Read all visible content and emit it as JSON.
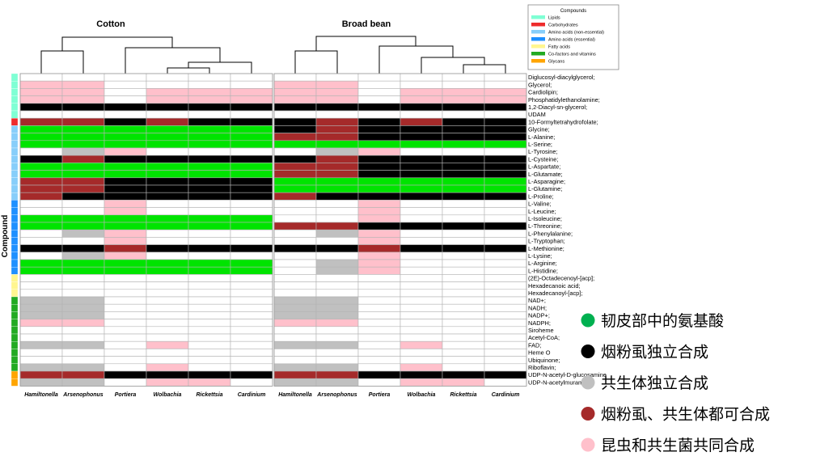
{
  "chart_data": {
    "type": "heatmap",
    "ylabel": "Compound",
    "panels": [
      {
        "title": "Cotton",
        "columns": [
          "Hamiltonella",
          "Arsenophonus",
          "Portiera",
          "Wolbachia",
          "Rickettsia",
          "Cardinium"
        ]
      },
      {
        "title": "Broad bean",
        "columns": [
          "Hamiltonella",
          "Arsenophonus",
          "Portiera",
          "Wolbachia",
          "Rickettsia",
          "Cardinium"
        ]
      }
    ],
    "rows": [
      "Diglucosyl-diacylglycerol;",
      "Glycerol;",
      "Cardiolipin;",
      "Phosphatidylethanolamine;",
      "1,2-Diacyl-sn-glycerol;",
      "UDAM",
      "10-Formyltetrahydrofolate;",
      "Glycine;",
      "L-Alanine;",
      "L-Serine;",
      "L-Tyrosine;",
      "L-Cysteine;",
      "L-Aspartate;",
      "L-Glutamate;",
      "L-Asparagine;",
      "L-Glutamine;",
      "L-Proline;",
      "L-Valine;",
      "L-Leucine;",
      "L-Isoleucine;",
      "L-Threonine;",
      "L-Phenylalanine;",
      "L-Tryptophan;",
      "L-Methionine;",
      "L-Lysine;",
      "L-Arginine;",
      "L-Histidine;",
      "(2E)-Octadecenoyl-[acp];",
      "Hexadecanoic acid;",
      "Hexadecanoyl-[acp];",
      "NAD+;",
      "NADH;",
      "NADP+;",
      "NADPH;",
      "Siroheme",
      "Acetyl-CoA;",
      "FAD;",
      "Heme O",
      "Ubiquinone;",
      "Riboflavin;",
      "UDP-N-acetyl-D-glucosamine",
      "UDP-N-acetylmuramate"
    ],
    "row_groups": [
      "L",
      "L",
      "L",
      "L",
      "L",
      "L",
      "C",
      "N",
      "N",
      "N",
      "N",
      "N",
      "N",
      "N",
      "N",
      "N",
      "N",
      "E",
      "E",
      "E",
      "E",
      "E",
      "E",
      "E",
      "E",
      "E",
      "E",
      "F",
      "F",
      "F",
      "V",
      "V",
      "V",
      "V",
      "V",
      "V",
      "V",
      "V",
      "V",
      "V",
      "G",
      "G"
    ],
    "value_key": {
      "0": "none",
      "1": "black",
      "2": "gray",
      "3": "red",
      "4": "pink",
      "5": "green"
    },
    "value_colors": {
      "0": "#ffffff",
      "1": "#000000",
      "2": "#c0c0c0",
      "3": "#a52a2a",
      "4": "#ffc0cb",
      "5": "#00e400"
    },
    "cotton_values": [
      [
        0,
        0,
        0,
        0,
        0,
        0
      ],
      [
        4,
        4,
        0,
        0,
        0,
        0
      ],
      [
        4,
        4,
        0,
        4,
        4,
        4
      ],
      [
        4,
        4,
        0,
        4,
        4,
        4
      ],
      [
        1,
        1,
        1,
        1,
        1,
        1
      ],
      [
        0,
        0,
        0,
        0,
        0,
        0
      ],
      [
        3,
        3,
        1,
        3,
        1,
        1
      ],
      [
        5,
        5,
        5,
        5,
        5,
        5
      ],
      [
        5,
        5,
        5,
        5,
        5,
        5
      ],
      [
        5,
        5,
        5,
        5,
        5,
        5
      ],
      [
        0,
        2,
        4,
        0,
        0,
        0
      ],
      [
        1,
        3,
        1,
        1,
        1,
        1
      ],
      [
        5,
        5,
        5,
        5,
        5,
        5
      ],
      [
        5,
        5,
        5,
        5,
        5,
        5
      ],
      [
        3,
        3,
        1,
        1,
        1,
        1
      ],
      [
        3,
        3,
        1,
        1,
        1,
        1
      ],
      [
        3,
        1,
        1,
        1,
        1,
        1
      ],
      [
        0,
        0,
        4,
        0,
        0,
        0
      ],
      [
        0,
        0,
        4,
        0,
        0,
        0
      ],
      [
        5,
        5,
        5,
        5,
        5,
        5
      ],
      [
        5,
        5,
        5,
        5,
        5,
        5
      ],
      [
        0,
        2,
        4,
        0,
        0,
        0
      ],
      [
        0,
        0,
        4,
        0,
        0,
        0
      ],
      [
        1,
        1,
        3,
        1,
        1,
        1
      ],
      [
        0,
        2,
        4,
        0,
        0,
        0
      ],
      [
        5,
        5,
        5,
        5,
        5,
        5
      ],
      [
        5,
        5,
        5,
        5,
        5,
        5
      ],
      [
        0,
        0,
        0,
        0,
        0,
        0
      ],
      [
        0,
        0,
        0,
        0,
        0,
        0
      ],
      [
        0,
        0,
        0,
        0,
        0,
        0
      ],
      [
        2,
        2,
        0,
        0,
        0,
        0
      ],
      [
        2,
        2,
        0,
        0,
        0,
        0
      ],
      [
        2,
        2,
        0,
        0,
        0,
        0
      ],
      [
        4,
        4,
        0,
        0,
        0,
        0
      ],
      [
        0,
        0,
        0,
        0,
        0,
        0
      ],
      [
        0,
        0,
        0,
        0,
        0,
        0
      ],
      [
        2,
        2,
        0,
        4,
        0,
        0
      ],
      [
        0,
        0,
        0,
        0,
        0,
        0
      ],
      [
        0,
        0,
        0,
        0,
        0,
        0
      ],
      [
        2,
        2,
        0,
        4,
        0,
        0
      ],
      [
        3,
        3,
        1,
        1,
        1,
        1
      ],
      [
        2,
        2,
        0,
        4,
        4,
        0
      ]
    ],
    "bean_values": [
      [
        0,
        0,
        0,
        0,
        0,
        0
      ],
      [
        4,
        4,
        0,
        0,
        0,
        0
      ],
      [
        4,
        4,
        0,
        4,
        4,
        4
      ],
      [
        4,
        4,
        0,
        4,
        4,
        4
      ],
      [
        1,
        1,
        1,
        1,
        1,
        1
      ],
      [
        0,
        0,
        0,
        0,
        0,
        0
      ],
      [
        1,
        3,
        1,
        3,
        1,
        1
      ],
      [
        1,
        3,
        1,
        1,
        1,
        1
      ],
      [
        3,
        3,
        1,
        1,
        1,
        1
      ],
      [
        5,
        5,
        5,
        5,
        5,
        5
      ],
      [
        0,
        2,
        4,
        0,
        0,
        0
      ],
      [
        1,
        3,
        1,
        1,
        1,
        1
      ],
      [
        3,
        3,
        1,
        1,
        1,
        1
      ],
      [
        3,
        3,
        1,
        1,
        1,
        1
      ],
      [
        5,
        5,
        5,
        5,
        5,
        5
      ],
      [
        5,
        5,
        5,
        5,
        5,
        5
      ],
      [
        3,
        1,
        1,
        1,
        1,
        1
      ],
      [
        0,
        0,
        4,
        0,
        0,
        0
      ],
      [
        0,
        0,
        4,
        0,
        0,
        0
      ],
      [
        0,
        0,
        4,
        0,
        0,
        0
      ],
      [
        3,
        3,
        1,
        1,
        1,
        1
      ],
      [
        0,
        2,
        4,
        0,
        0,
        0
      ],
      [
        0,
        0,
        4,
        0,
        0,
        0
      ],
      [
        1,
        1,
        3,
        1,
        1,
        1
      ],
      [
        0,
        0,
        4,
        0,
        0,
        0
      ],
      [
        0,
        2,
        4,
        0,
        0,
        0
      ],
      [
        0,
        2,
        4,
        0,
        0,
        0
      ],
      [
        0,
        0,
        0,
        0,
        0,
        0
      ],
      [
        0,
        0,
        0,
        0,
        0,
        0
      ],
      [
        0,
        0,
        0,
        0,
        0,
        0
      ],
      [
        2,
        2,
        0,
        0,
        0,
        0
      ],
      [
        2,
        2,
        0,
        0,
        0,
        0
      ],
      [
        2,
        2,
        0,
        0,
        0,
        0
      ],
      [
        4,
        4,
        0,
        0,
        0,
        0
      ],
      [
        0,
        0,
        0,
        0,
        0,
        0
      ],
      [
        0,
        0,
        0,
        0,
        0,
        0
      ],
      [
        2,
        2,
        0,
        4,
        0,
        0
      ],
      [
        0,
        0,
        0,
        0,
        0,
        0
      ],
      [
        0,
        0,
        0,
        0,
        0,
        0
      ],
      [
        2,
        2,
        0,
        4,
        0,
        0
      ],
      [
        3,
        3,
        1,
        1,
        1,
        1
      ],
      [
        2,
        2,
        0,
        4,
        4,
        0
      ]
    ],
    "legend": {
      "title": "Compounds",
      "items": [
        {
          "key": "L",
          "label": "Lipids",
          "color": "#7fffd4"
        },
        {
          "key": "C",
          "label": "Carbohydrates",
          "color": "#ee2c2c"
        },
        {
          "key": "N",
          "label": "Amino acids (non-essential)",
          "color": "#87cefa"
        },
        {
          "key": "E",
          "label": "Amino acids (essential)",
          "color": "#1e90ff"
        },
        {
          "key": "F",
          "label": "Fatty acids",
          "color": "#fff68f"
        },
        {
          "key": "V",
          "label": "Co-factors and vitamins",
          "color": "#22aa22"
        },
        {
          "key": "G",
          "label": "Glycans",
          "color": "#ffa500"
        }
      ]
    },
    "annotations": [
      {
        "label": "韧皮部中的氨基酸",
        "color": "#00b050"
      },
      {
        "label": "烟粉虱独立合成",
        "color": "#000000"
      },
      {
        "label": "共生体独立合成",
        "color": "#c0c0c0"
      },
      {
        "label": "烟粉虱、共生体都可合成",
        "color": "#a52a2a"
      },
      {
        "label": "昆虫和共生菌共同合成",
        "color": "#ffc0cb"
      }
    ]
  }
}
